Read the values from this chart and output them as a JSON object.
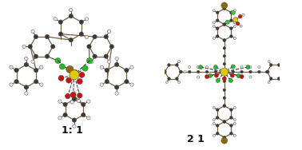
{
  "background_color": "#ffffff",
  "left_label": "1: 1",
  "right_label": "2 1",
  "label_fontsize": 9,
  "label_fontweight": "bold",
  "label_color": "#111111",
  "carbon": "#3a3a3a",
  "hydrogen": "#e8e8e8",
  "oxygen": "#cc1111",
  "nitrogen_green": "#22bb22",
  "lanthanide": "#ddcc00",
  "bromine": "#8B6914",
  "fluorine": "#33cc33",
  "bond_color": "#7a6040",
  "dashed_color": "#333333",
  "fig_width": 3.78,
  "fig_height": 1.88,
  "dpi": 100
}
